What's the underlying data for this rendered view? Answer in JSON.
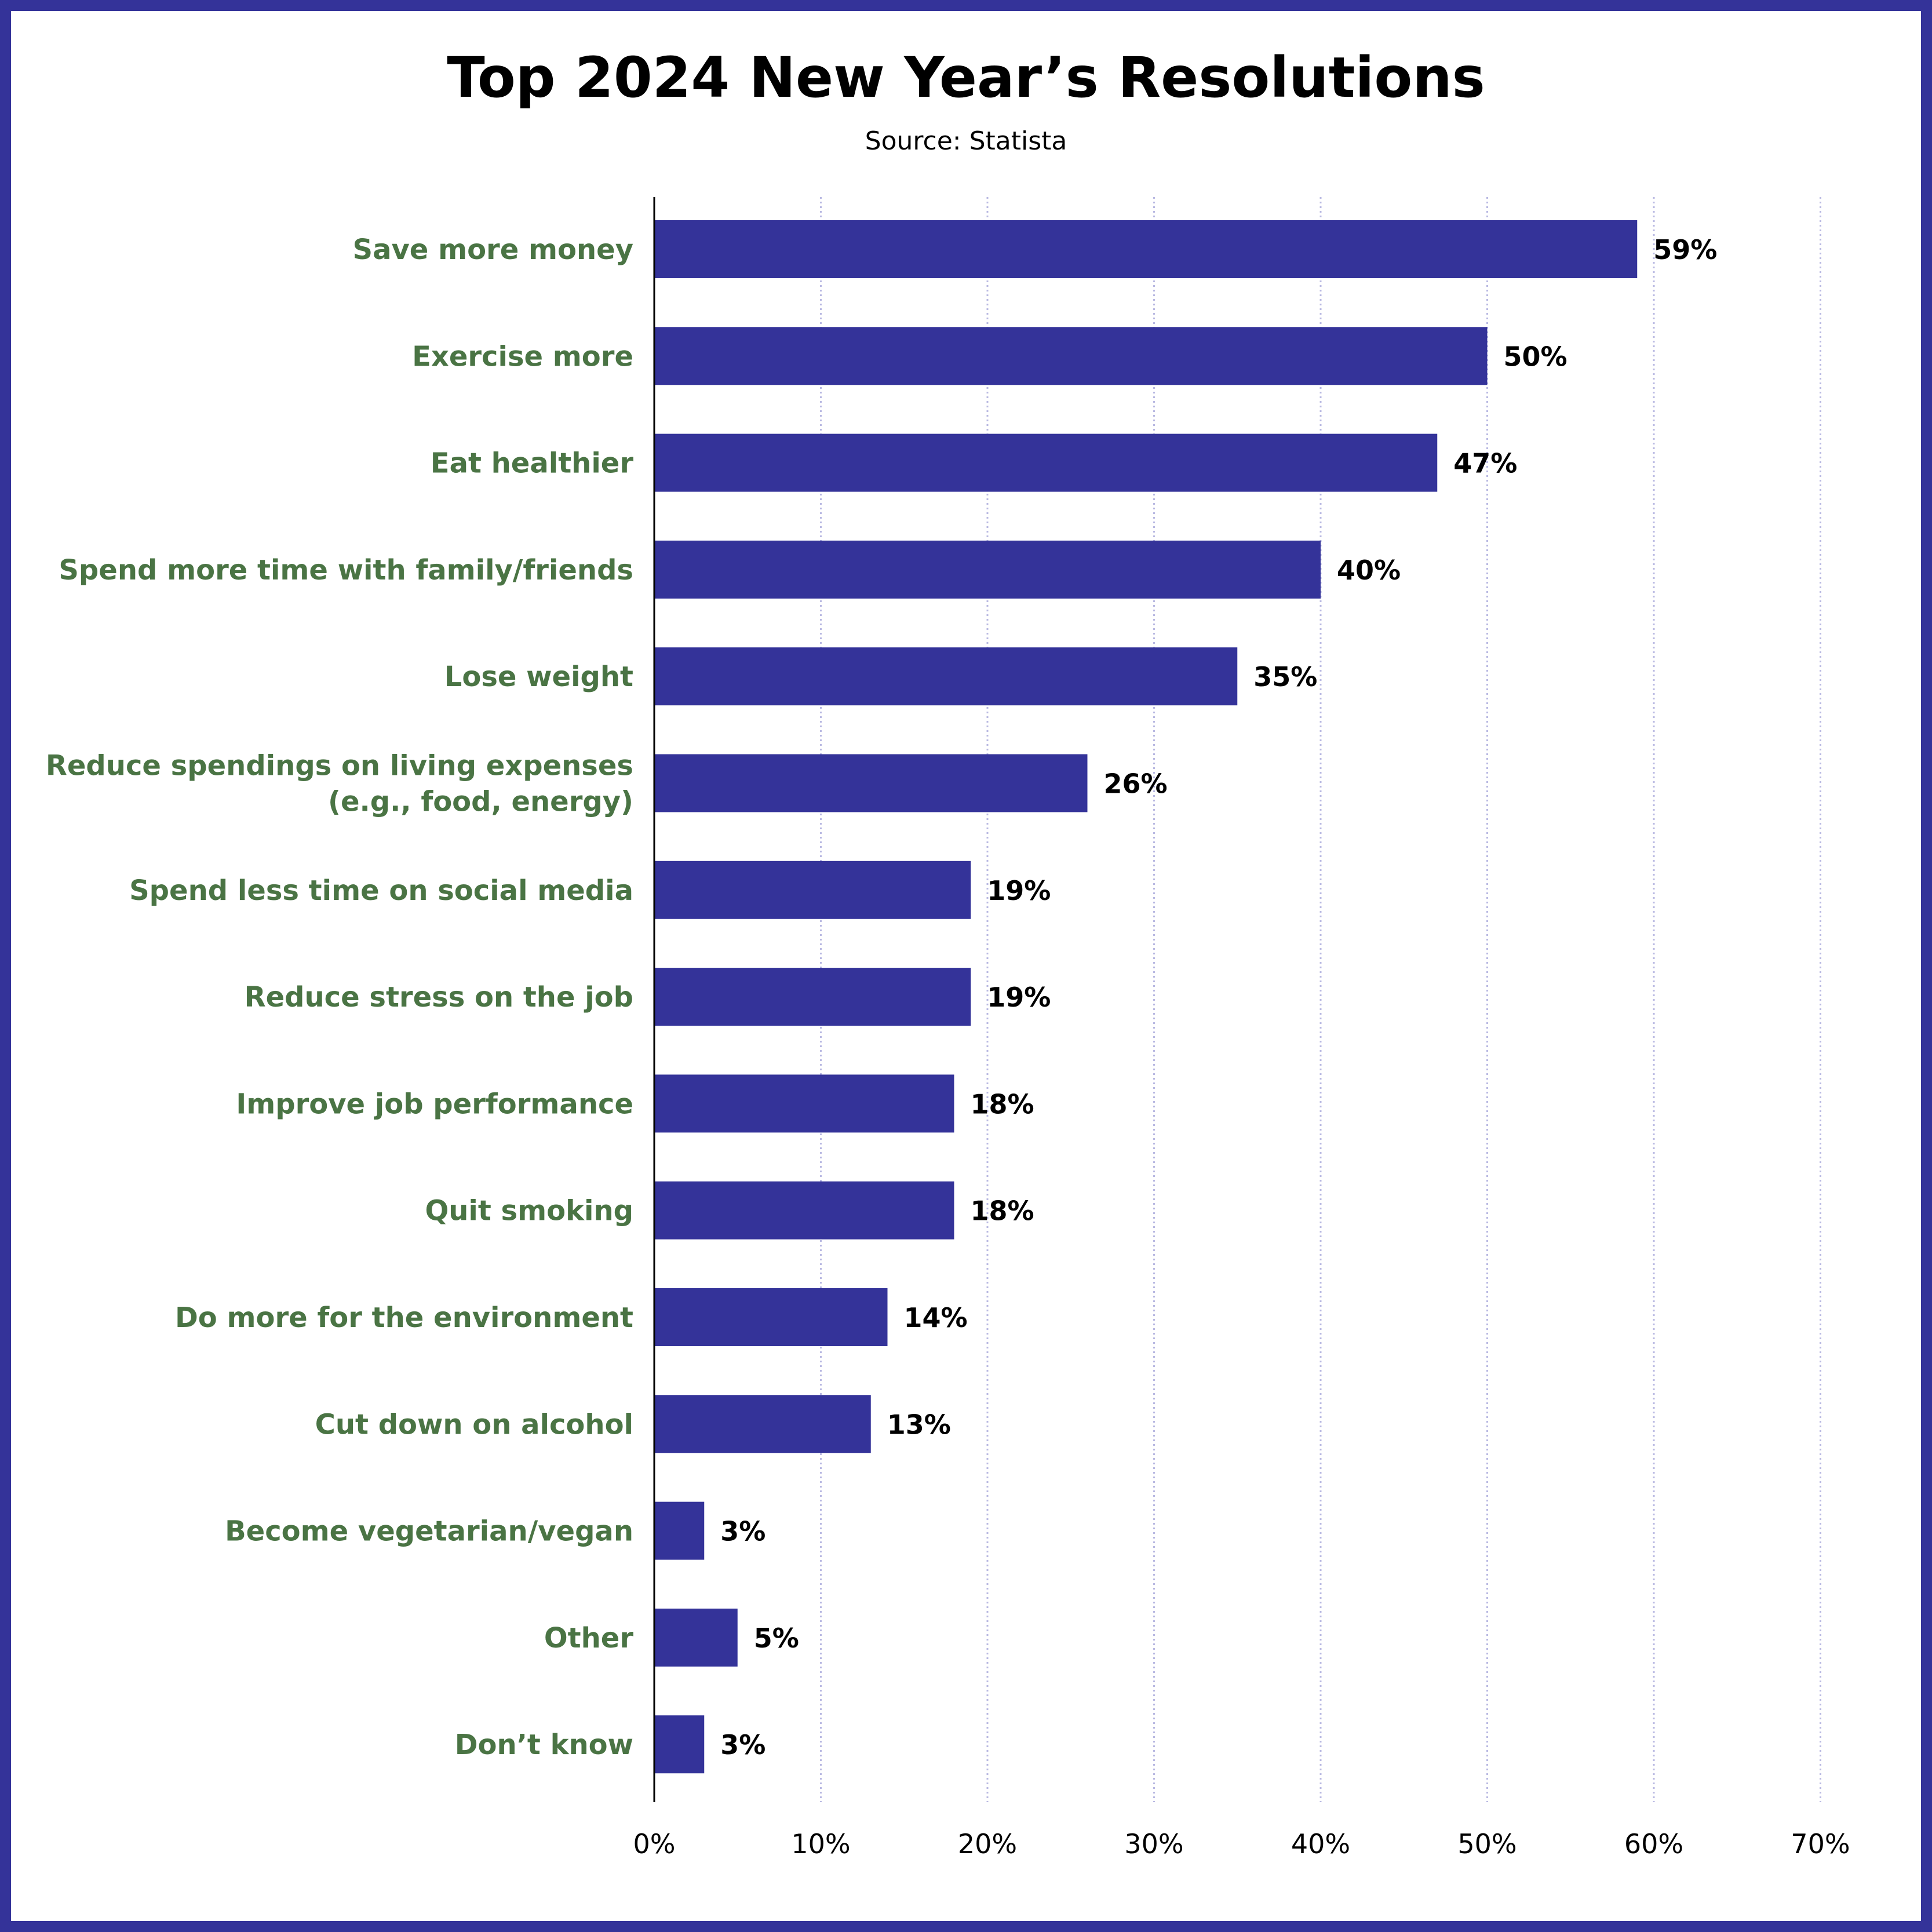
{
  "chart_data": {
    "type": "bar",
    "orientation": "horizontal",
    "title": "Top 2024 New Year’s Resolutions",
    "subtitle": "Source: Statista",
    "categories": [
      [
        "Save more money"
      ],
      [
        "Exercise more"
      ],
      [
        "Eat healthier"
      ],
      [
        "Spend more time with family/friends"
      ],
      [
        "Lose weight"
      ],
      [
        "Reduce spendings on living expenses",
        "(e.g., food, energy)"
      ],
      [
        "Spend less time on social media"
      ],
      [
        "Reduce stress on the job"
      ],
      [
        "Improve job performance"
      ],
      [
        "Quit smoking"
      ],
      [
        "Do more for the environment"
      ],
      [
        "Cut down on alcohol"
      ],
      [
        "Become vegetarian/vegan"
      ],
      [
        "Other"
      ],
      [
        "Don’t know"
      ]
    ],
    "values": [
      59,
      50,
      47,
      40,
      35,
      26,
      19,
      19,
      18,
      18,
      14,
      13,
      3,
      5,
      3
    ],
    "value_labels": [
      "59%",
      "50%",
      "47%",
      "40%",
      "35%",
      "26%",
      "19%",
      "19%",
      "18%",
      "18%",
      "14%",
      "13%",
      "3%",
      "5%",
      "3%"
    ],
    "xlim": [
      0,
      70
    ],
    "xticks": [
      0,
      10,
      20,
      30,
      40,
      50,
      60,
      70
    ],
    "xtick_labels": [
      "0%",
      "10%",
      "20%",
      "30%",
      "40%",
      "50%",
      "60%",
      "70%"
    ],
    "grid": "vertical dotted",
    "legend": "none",
    "colors": {
      "bar": "#343399",
      "frame": "#343399",
      "category_text": "#4a7444",
      "grid": "#b9b9e2"
    }
  }
}
